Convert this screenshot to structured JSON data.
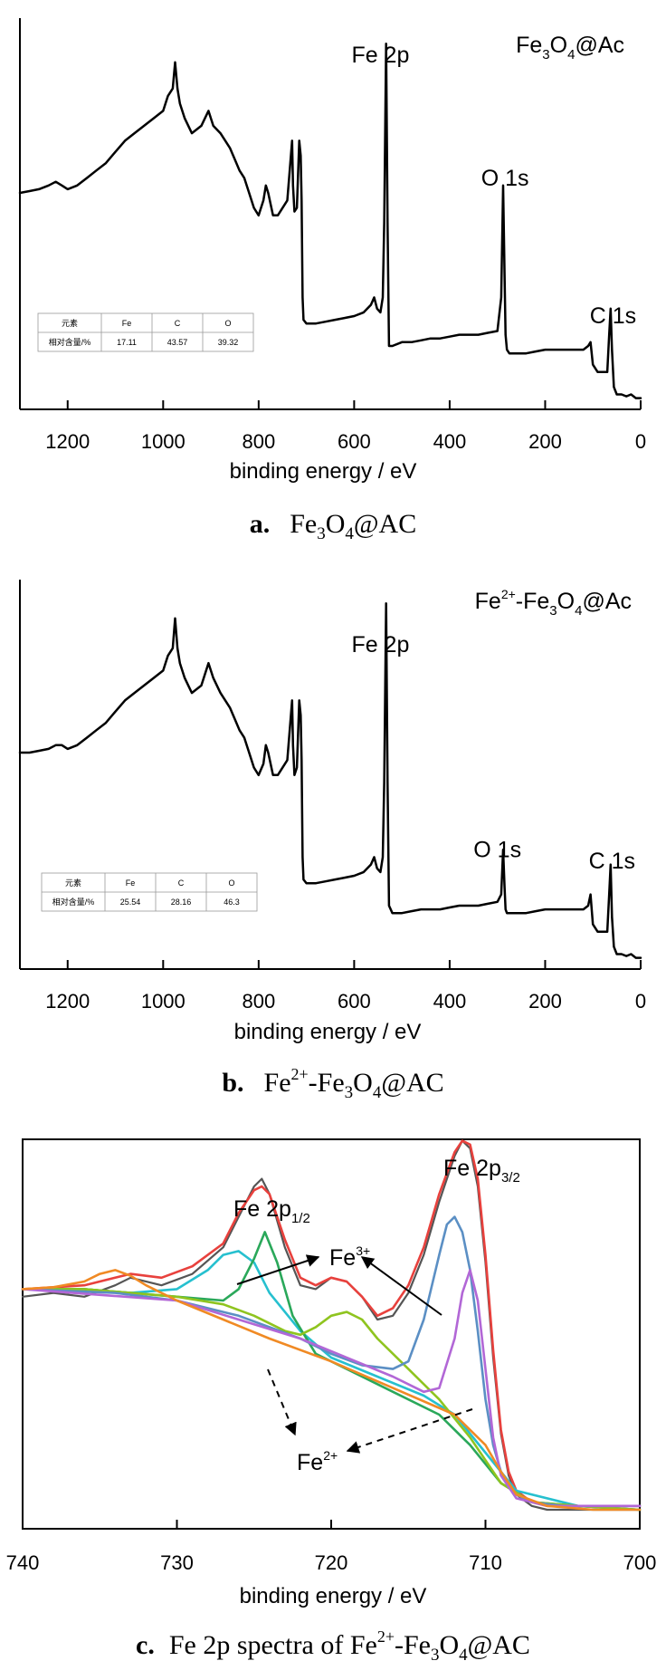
{
  "chart_data": [
    {
      "id": "a",
      "type": "line",
      "xlabel": "binding energy / eV",
      "xlim": [
        1300,
        0
      ],
      "xticks": [
        1200,
        1000,
        800,
        600,
        400,
        200,
        0
      ],
      "sample_label": {
        "pre": "Fe",
        "sub1": "3",
        "mid": "O",
        "sub2": "4",
        "post": "@Ac"
      },
      "peak_labels": [
        {
          "text": "Fe 2p",
          "x": 545,
          "y": 0.93
        },
        {
          "text": "O 1s",
          "x": 284,
          "y": 0.6
        },
        {
          "text": "C 1s",
          "x": 58,
          "y": 0.23
        }
      ],
      "table": {
        "headers": [
          "元素",
          "Fe",
          "C",
          "O"
        ],
        "row_label": "相对含量/%",
        "values": [
          "17.11",
          "43.57",
          "39.32"
        ]
      },
      "caption": {
        "letter": "a.",
        "pre": "Fe",
        "sub1": "3",
        "mid": "O",
        "sub2": "4",
        "post": "@AC"
      },
      "series": [
        {
          "color": "#000000",
          "x": [
            1300,
            1280,
            1260,
            1240,
            1225,
            1212,
            1200,
            1180,
            1160,
            1140,
            1120,
            1100,
            1080,
            1060,
            1040,
            1020,
            1000,
            990,
            980,
            975,
            970,
            965,
            955,
            940,
            920,
            905,
            895,
            880,
            860,
            850,
            840,
            830,
            820,
            810,
            800,
            790,
            785,
            780,
            770,
            760,
            740,
            730,
            728,
            725,
            720,
            715,
            712,
            710,
            708,
            706,
            700,
            680,
            660,
            640,
            620,
            600,
            580,
            565,
            558,
            552,
            545,
            540,
            537,
            533,
            530,
            527,
            520,
            500,
            480,
            460,
            440,
            420,
            400,
            380,
            360,
            340,
            320,
            300,
            292,
            288,
            285,
            283,
            280,
            275,
            260,
            240,
            220,
            200,
            180,
            160,
            140,
            120,
            110,
            105,
            100,
            90,
            80,
            70,
            66,
            63,
            60,
            56,
            50,
            40,
            30,
            20,
            10,
            0
          ],
          "y": [
            0.58,
            0.585,
            0.59,
            0.6,
            0.61,
            0.6,
            0.59,
            0.6,
            0.62,
            0.64,
            0.66,
            0.69,
            0.72,
            0.74,
            0.76,
            0.78,
            0.8,
            0.84,
            0.86,
            0.93,
            0.86,
            0.82,
            0.78,
            0.74,
            0.76,
            0.8,
            0.76,
            0.74,
            0.7,
            0.67,
            0.64,
            0.62,
            0.58,
            0.54,
            0.52,
            0.56,
            0.6,
            0.58,
            0.52,
            0.52,
            0.56,
            0.72,
            0.6,
            0.53,
            0.54,
            0.72,
            0.68,
            0.56,
            0.3,
            0.24,
            0.23,
            0.23,
            0.235,
            0.24,
            0.245,
            0.25,
            0.26,
            0.28,
            0.3,
            0.27,
            0.26,
            0.3,
            0.5,
            0.98,
            0.5,
            0.17,
            0.17,
            0.18,
            0.18,
            0.185,
            0.19,
            0.19,
            0.195,
            0.2,
            0.2,
            0.2,
            0.205,
            0.21,
            0.3,
            0.6,
            0.36,
            0.2,
            0.16,
            0.15,
            0.15,
            0.15,
            0.155,
            0.16,
            0.16,
            0.16,
            0.16,
            0.16,
            0.17,
            0.18,
            0.12,
            0.1,
            0.1,
            0.1,
            0.2,
            0.27,
            0.16,
            0.06,
            0.04,
            0.04,
            0.035,
            0.04,
            0.03,
            0.03
          ]
        }
      ]
    },
    {
      "id": "b",
      "type": "line",
      "xlabel": "binding energy / eV",
      "xlim": [
        1300,
        0
      ],
      "xticks": [
        1200,
        1000,
        800,
        600,
        400,
        200,
        0
      ],
      "sample_label": {
        "pre": "Fe",
        "sup0": "2+",
        "dash": "-Fe",
        "sub1": "3",
        "mid": "O",
        "sub2": "4",
        "post": "@Ac"
      },
      "peak_labels": [
        {
          "text": "Fe 2p",
          "x": 545,
          "y": 0.85
        },
        {
          "text": "O 1s",
          "x": 300,
          "y": 0.3
        },
        {
          "text": "C 1s",
          "x": 60,
          "y": 0.27
        }
      ],
      "table": {
        "headers": [
          "元素",
          "Fe",
          "C",
          "O"
        ],
        "row_label": "相对含量/%",
        "values": [
          "25.54",
          "28.16",
          "46.3"
        ]
      },
      "caption": {
        "letter": "b.",
        "pre": "Fe",
        "sup0": "2+",
        "dash": "-Fe",
        "sub1": "3",
        "mid": "O",
        "sub2": "4",
        "post": "@AC"
      },
      "series": [
        {
          "color": "#000000",
          "x": [
            1300,
            1280,
            1260,
            1240,
            1225,
            1212,
            1200,
            1180,
            1160,
            1140,
            1120,
            1100,
            1080,
            1060,
            1040,
            1020,
            1000,
            990,
            980,
            975,
            970,
            965,
            955,
            940,
            920,
            905,
            895,
            880,
            860,
            850,
            840,
            830,
            820,
            810,
            800,
            790,
            785,
            780,
            770,
            760,
            740,
            730,
            728,
            725,
            720,
            715,
            712,
            710,
            708,
            706,
            700,
            680,
            660,
            640,
            620,
            600,
            580,
            565,
            558,
            552,
            545,
            540,
            537,
            533,
            530,
            527,
            520,
            500,
            480,
            460,
            440,
            420,
            400,
            380,
            360,
            340,
            320,
            300,
            292,
            288,
            285,
            283,
            280,
            275,
            260,
            240,
            220,
            200,
            180,
            160,
            140,
            120,
            110,
            105,
            100,
            90,
            80,
            70,
            66,
            63,
            60,
            56,
            50,
            40,
            30,
            20,
            10,
            0
          ],
          "y": [
            0.58,
            0.58,
            0.585,
            0.59,
            0.6,
            0.6,
            0.59,
            0.6,
            0.62,
            0.64,
            0.66,
            0.69,
            0.72,
            0.74,
            0.76,
            0.78,
            0.8,
            0.84,
            0.86,
            0.94,
            0.86,
            0.82,
            0.78,
            0.74,
            0.76,
            0.82,
            0.78,
            0.74,
            0.7,
            0.67,
            0.64,
            0.62,
            0.58,
            0.54,
            0.52,
            0.55,
            0.6,
            0.58,
            0.52,
            0.52,
            0.56,
            0.72,
            0.6,
            0.52,
            0.54,
            0.72,
            0.68,
            0.56,
            0.3,
            0.24,
            0.23,
            0.23,
            0.235,
            0.24,
            0.245,
            0.25,
            0.26,
            0.28,
            0.3,
            0.27,
            0.26,
            0.3,
            0.5,
            0.98,
            0.5,
            0.17,
            0.15,
            0.15,
            0.155,
            0.16,
            0.16,
            0.16,
            0.165,
            0.17,
            0.17,
            0.17,
            0.175,
            0.18,
            0.2,
            0.32,
            0.22,
            0.16,
            0.15,
            0.15,
            0.15,
            0.15,
            0.155,
            0.16,
            0.16,
            0.16,
            0.16,
            0.16,
            0.17,
            0.2,
            0.12,
            0.1,
            0.1,
            0.1,
            0.2,
            0.28,
            0.14,
            0.06,
            0.04,
            0.04,
            0.035,
            0.04,
            0.03,
            0.03
          ]
        }
      ]
    },
    {
      "id": "c",
      "type": "line",
      "xlabel": "binding energy / eV",
      "xlim": [
        740,
        700
      ],
      "xticks": [
        740,
        730,
        720,
        710,
        700
      ],
      "peak_labels": [
        {
          "main": "Fe 2p",
          "sub": "1/2",
          "x": 724.3,
          "y": 0.91
        },
        {
          "main": "Fe 2p",
          "sub": "3/2",
          "x": 711,
          "y": 1.03
        }
      ],
      "ion_labels": [
        {
          "main": "Fe",
          "sup": "3+",
          "x": 718.6,
          "y": 0.79
        },
        {
          "main": "Fe",
          "sup": "2+",
          "x": 721.5,
          "y": 0.23
        }
      ],
      "caption": {
        "letter": "c.",
        "text": "Fe 2p spectra of ",
        "pre": "Fe",
        "sup0": "2+",
        "dash": "-Fe",
        "sub1": "3",
        "mid": "O",
        "sub2": "4",
        "post": "@AC"
      },
      "series": [
        {
          "color": "#555555",
          "x": [
            740,
            738,
            736,
            734,
            733,
            731,
            729,
            727,
            726,
            725,
            724.5,
            724,
            723,
            722,
            721,
            720,
            719,
            718,
            717,
            716,
            715,
            714,
            713,
            712,
            711.5,
            711,
            710.5,
            710,
            709.5,
            709,
            708.5,
            708,
            707,
            706,
            705,
            704,
            703,
            702,
            701,
            700
          ],
          "y": [
            0.61,
            0.62,
            0.61,
            0.64,
            0.66,
            0.64,
            0.67,
            0.74,
            0.82,
            0.9,
            0.92,
            0.88,
            0.74,
            0.64,
            0.63,
            0.66,
            0.65,
            0.61,
            0.55,
            0.56,
            0.62,
            0.72,
            0.86,
            0.98,
            1.02,
            1.0,
            0.9,
            0.7,
            0.45,
            0.25,
            0.14,
            0.09,
            0.06,
            0.05,
            0.05,
            0.05,
            0.05,
            0.05,
            0.05,
            0.05
          ]
        },
        {
          "color": "#e8413d",
          "x": [
            740,
            738,
            736,
            734,
            733,
            731,
            729,
            727,
            726,
            725,
            724.5,
            724,
            723,
            722,
            721,
            720,
            719,
            718,
            717,
            716,
            715,
            714,
            713,
            712,
            711.5,
            711,
            710.5,
            710,
            709.5,
            709,
            708.5,
            708,
            707,
            706,
            705,
            704,
            703,
            702,
            701,
            700
          ],
          "y": [
            0.63,
            0.635,
            0.64,
            0.66,
            0.67,
            0.66,
            0.69,
            0.75,
            0.83,
            0.89,
            0.9,
            0.88,
            0.76,
            0.66,
            0.64,
            0.66,
            0.65,
            0.61,
            0.56,
            0.58,
            0.64,
            0.74,
            0.88,
            0.99,
            1.02,
            1.01,
            0.92,
            0.72,
            0.47,
            0.26,
            0.15,
            0.1,
            0.07,
            0.06,
            0.06,
            0.06,
            0.06,
            0.06,
            0.06,
            0.06
          ]
        },
        {
          "color": "#26c0cf",
          "x": [
            740,
            736,
            733,
            730,
            728,
            727,
            726,
            725,
            724,
            722,
            720,
            717,
            714,
            712,
            710,
            708,
            704,
            700
          ],
          "y": [
            0.63,
            0.63,
            0.62,
            0.63,
            0.68,
            0.72,
            0.73,
            0.7,
            0.62,
            0.52,
            0.45,
            0.4,
            0.35,
            0.3,
            0.2,
            0.1,
            0.06,
            0.05
          ]
        },
        {
          "color": "#2aa85a",
          "x": [
            740,
            736,
            733,
            730,
            727,
            726,
            725,
            724.3,
            723.5,
            722.5,
            721,
            719,
            716,
            713,
            711,
            709,
            707,
            704,
            700
          ],
          "y": [
            0.63,
            0.63,
            0.62,
            0.61,
            0.6,
            0.63,
            0.71,
            0.78,
            0.7,
            0.56,
            0.46,
            0.42,
            0.36,
            0.3,
            0.22,
            0.12,
            0.07,
            0.06,
            0.05
          ]
        },
        {
          "color": "#8fc41f",
          "x": [
            740,
            736,
            733,
            730,
            727,
            725,
            723,
            722,
            721,
            720,
            719,
            718,
            717,
            715,
            713,
            711,
            709,
            707,
            704,
            700
          ],
          "y": [
            0.63,
            0.63,
            0.62,
            0.61,
            0.59,
            0.56,
            0.52,
            0.51,
            0.53,
            0.56,
            0.57,
            0.55,
            0.5,
            0.42,
            0.34,
            0.24,
            0.12,
            0.07,
            0.06,
            0.05
          ]
        },
        {
          "color": "#5b8fc4",
          "x": [
            740,
            734,
            730,
            726,
            722,
            720,
            718,
            716,
            715,
            714,
            713,
            712.5,
            712,
            711.5,
            711,
            710.5,
            710,
            709.5,
            709,
            708,
            707,
            705,
            702,
            700
          ],
          "y": [
            0.63,
            0.62,
            0.6,
            0.56,
            0.5,
            0.46,
            0.43,
            0.42,
            0.44,
            0.55,
            0.72,
            0.8,
            0.82,
            0.78,
            0.68,
            0.52,
            0.34,
            0.22,
            0.15,
            0.09,
            0.07,
            0.06,
            0.06,
            0.06
          ]
        },
        {
          "color": "#b267d6",
          "x": [
            740,
            730,
            722,
            716,
            714,
            713,
            712,
            711.5,
            711,
            710.5,
            710,
            709.5,
            709,
            708,
            706,
            703,
            700
          ],
          "y": [
            0.63,
            0.6,
            0.5,
            0.4,
            0.36,
            0.37,
            0.5,
            0.62,
            0.68,
            0.6,
            0.42,
            0.24,
            0.14,
            0.08,
            0.06,
            0.06,
            0.06
          ]
        },
        {
          "color": "#f08a24",
          "x": [
            740,
            738,
            736,
            735,
            734,
            733,
            732,
            730,
            727,
            724,
            720,
            716,
            712,
            710,
            709,
            708,
            706,
            703,
            700
          ],
          "y": [
            0.63,
            0.635,
            0.65,
            0.67,
            0.68,
            0.665,
            0.64,
            0.6,
            0.55,
            0.5,
            0.44,
            0.37,
            0.3,
            0.22,
            0.15,
            0.09,
            0.06,
            0.05,
            0.05
          ]
        }
      ]
    }
  ]
}
